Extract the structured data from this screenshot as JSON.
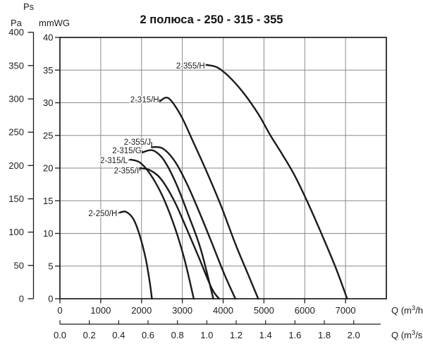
{
  "header": {
    "ps_label": "Ps",
    "pa_unit": "Pa",
    "mmwg_unit": "mmWG",
    "title": "2 полюса - 250 - 315 - 355"
  },
  "colors": {
    "curve": "#1a1a1a",
    "grid": "#8a8a8a",
    "frame": "#1c1c1c",
    "text": "#1c1c1c"
  },
  "axes": {
    "pa": {
      "ticks": [
        400,
        350,
        300,
        250,
        200,
        150,
        100,
        50,
        0
      ]
    },
    "mmwg": {
      "ticks": [
        40,
        35,
        30,
        25,
        20,
        15,
        10,
        5,
        0
      ]
    },
    "flow_m3h": {
      "ticks": [
        0,
        1000,
        2000,
        3000,
        4000,
        5000,
        6000,
        7000
      ],
      "unit": "Q (m³/h)"
    },
    "flow_m3s": {
      "ticks": [
        "0.0",
        "0.2",
        "0.4",
        "0.6",
        "0.8",
        "1.0",
        "1.2",
        "1.4",
        "1.6",
        "1.8",
        "2.0"
      ],
      "unit": "Q (m³/s)"
    }
  },
  "chart_data": {
    "type": "line",
    "title": "2 полюса - 250 - 315 - 355",
    "xlabel": "Q (m³/h)",
    "xlabel2": "Q (m³/s)",
    "ylabel_left": "Pa",
    "ylabel_right": "Ps mmWG",
    "x_range_m3h": [
      0,
      8000
    ],
    "y_range_mmwg": [
      0,
      40
    ],
    "y_range_pa": [
      0,
      400
    ],
    "grid": true,
    "legend_position": "labels-on-curves",
    "series": [
      {
        "name": "2-355/H",
        "label_q": 3555,
        "label_p": 35.7,
        "points": [
          [
            3590,
            35.8
          ],
          [
            3860,
            35.4
          ],
          [
            4160,
            33.9
          ],
          [
            4500,
            31.5
          ],
          [
            4860,
            28.3
          ],
          [
            5150,
            25.1
          ],
          [
            5450,
            22.1
          ],
          [
            5750,
            18.9
          ],
          [
            6060,
            14.9
          ],
          [
            6400,
            10.1
          ],
          [
            6750,
            4.9
          ],
          [
            7040,
            0
          ]
        ]
      },
      {
        "name": "2-315/H",
        "label_q": 2430,
        "label_p": 30.5,
        "points": [
          [
            2440,
            30.2
          ],
          [
            2660,
            30.7
          ],
          [
            2960,
            28.1
          ],
          [
            3260,
            24.1
          ],
          [
            3600,
            19.4
          ],
          [
            3950,
            14.2
          ],
          [
            4300,
            8.4
          ],
          [
            4620,
            3.6
          ],
          [
            4860,
            0
          ]
        ]
      },
      {
        "name": "2-355/J",
        "label_q": 2230,
        "label_p": 24.0,
        "points": [
          [
            2250,
            23.2
          ],
          [
            2520,
            23.0
          ],
          [
            2820,
            21.0
          ],
          [
            3120,
            17.5
          ],
          [
            3420,
            13.2
          ],
          [
            3720,
            8.6
          ],
          [
            4020,
            3.9
          ],
          [
            4300,
            0
          ]
        ]
      },
      {
        "name": "2-315/G",
        "label_q": 2000,
        "label_p": 22.7,
        "points": [
          [
            2020,
            22.4
          ],
          [
            2280,
            22.7
          ],
          [
            2550,
            21.2
          ],
          [
            2850,
            17.6
          ],
          [
            3150,
            12.8
          ],
          [
            3450,
            7.6
          ],
          [
            3760,
            0
          ]
        ]
      },
      {
        "name": "2-315/L",
        "label_q": 1660,
        "label_p": 21.2,
        "points": [
          [
            1730,
            21.3
          ],
          [
            1950,
            20.9
          ],
          [
            2200,
            19.2
          ],
          [
            2500,
            15.9
          ],
          [
            2800,
            11.2
          ],
          [
            3050,
            6.1
          ],
          [
            3280,
            0
          ]
        ]
      },
      {
        "name": "2-355/I",
        "label_q": 1940,
        "label_p": 19.6,
        "points": [
          [
            1960,
            20.0
          ],
          [
            2200,
            19.7
          ],
          [
            2480,
            18.3
          ],
          [
            2800,
            15.0
          ],
          [
            3100,
            10.8
          ],
          [
            3400,
            6.4
          ],
          [
            3720,
            1.6
          ],
          [
            3900,
            0
          ]
        ]
      },
      {
        "name": "2-250/H",
        "label_q": 1405,
        "label_p": 13.1,
        "points": [
          [
            1470,
            13.2
          ],
          [
            1620,
            13.3
          ],
          [
            1800,
            12.2
          ],
          [
            1950,
            9.8
          ],
          [
            2100,
            6.2
          ],
          [
            2200,
            2.6
          ],
          [
            2255,
            0
          ]
        ]
      }
    ]
  }
}
